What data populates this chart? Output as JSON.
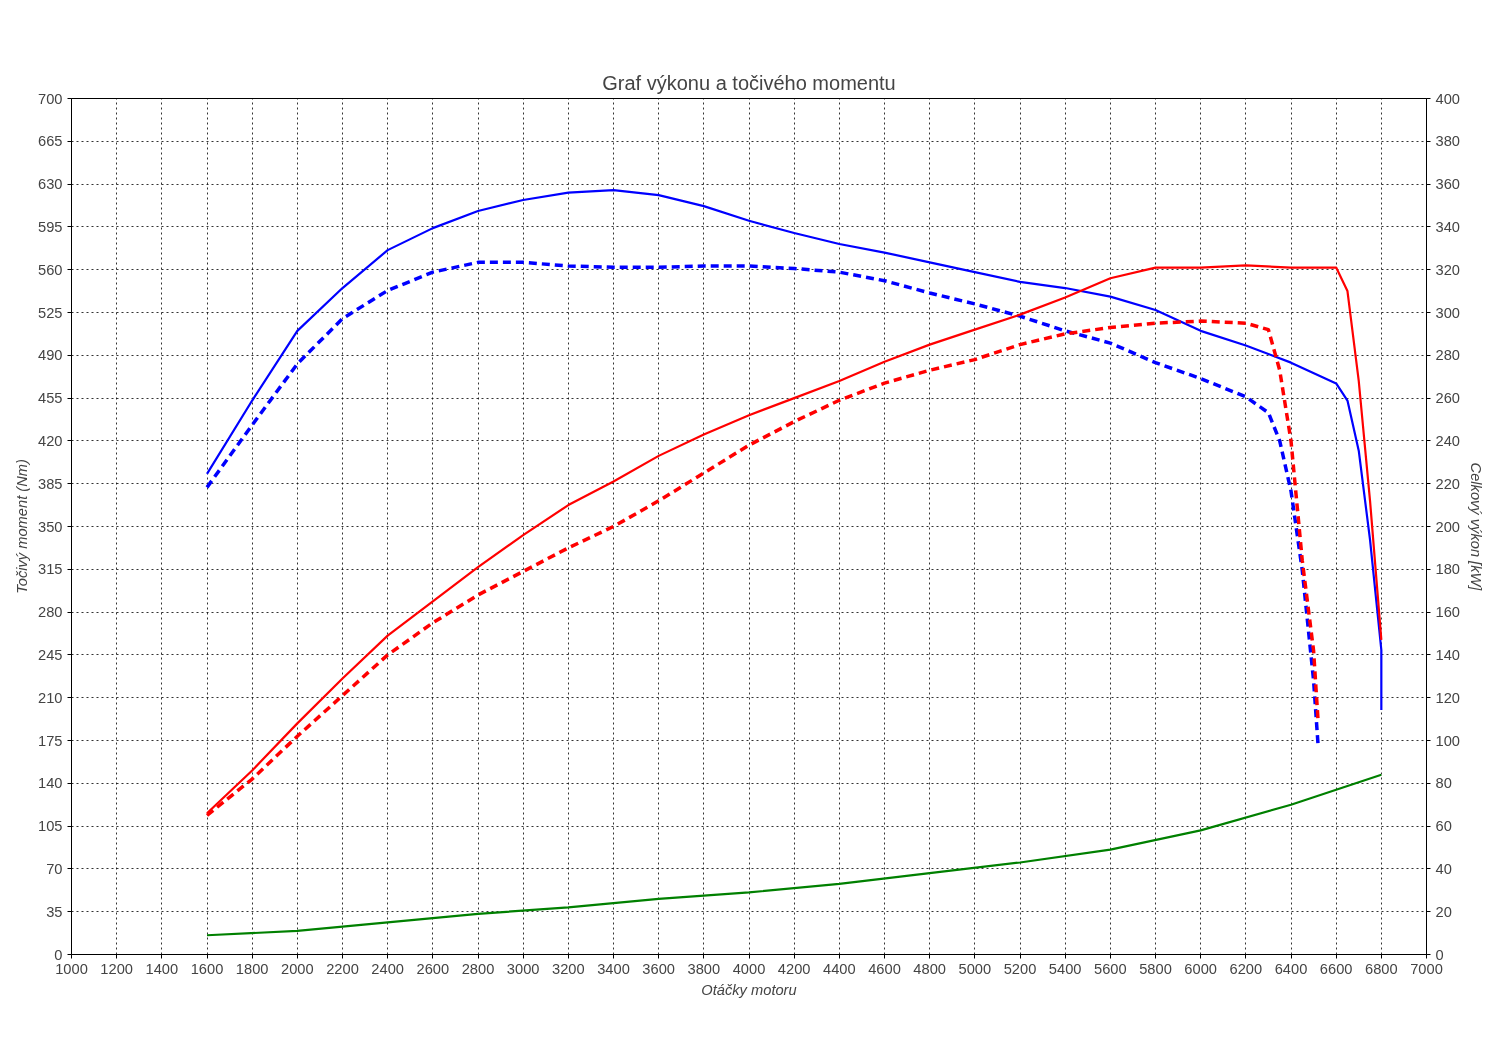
{
  "chart_data": {
    "type": "line",
    "title": "Graf výkonu a točivého momentu",
    "xlabel": "Otáčky motoru",
    "ylabel": "Točivý moment (Nm)",
    "y2label": "Celkový výkon [kW]",
    "xlim": [
      1000,
      7000
    ],
    "xticks": [
      1000,
      1200,
      1400,
      1600,
      1800,
      2000,
      2200,
      2400,
      2600,
      2800,
      3000,
      3200,
      3400,
      3600,
      3800,
      4000,
      4200,
      4400,
      4600,
      4800,
      5000,
      5200,
      5400,
      5600,
      5800,
      6000,
      6200,
      6400,
      6600,
      6800,
      7000
    ],
    "ylim": [
      0,
      700
    ],
    "yticks": [
      0,
      35,
      70,
      105,
      140,
      175,
      210,
      245,
      280,
      315,
      350,
      385,
      420,
      455,
      490,
      525,
      560,
      595,
      630,
      665,
      700
    ],
    "y2lim": [
      0,
      400
    ],
    "y2ticks": [
      0,
      20,
      40,
      60,
      80,
      100,
      120,
      140,
      160,
      180,
      200,
      220,
      240,
      260,
      280,
      300,
      320,
      340,
      360,
      380,
      400
    ],
    "grid": true,
    "series": [
      {
        "color": "#0000ff",
        "axis": "y",
        "line_style": "solid",
        "x": [
          1600,
          1800,
          2000,
          2200,
          2400,
          2600,
          2800,
          3000,
          3200,
          3400,
          3600,
          3800,
          4000,
          4200,
          4400,
          4600,
          4800,
          5000,
          5200,
          5400,
          5600,
          5800,
          6000,
          6200,
          6400,
          6600,
          6650,
          6700,
          6750,
          6800,
          6800
        ],
        "values": [
          393,
          453,
          510,
          545,
          576,
          594,
          608,
          617,
          623,
          625,
          621,
          612,
          600,
          590,
          581,
          574,
          566,
          558,
          550,
          545,
          538,
          527,
          510,
          498,
          484,
          467,
          453,
          412,
          339,
          249,
          200
        ]
      },
      {
        "color": "#0000ff",
        "axis": "y",
        "line_style": "dashed",
        "x": [
          1600,
          1800,
          2000,
          2200,
          2400,
          2600,
          2800,
          3000,
          3200,
          3400,
          3600,
          3800,
          4000,
          4200,
          4400,
          4600,
          4800,
          5000,
          5200,
          5400,
          5600,
          5800,
          6000,
          6200,
          6300,
          6350,
          6400,
          6450,
          6500,
          6520
        ],
        "values": [
          382,
          433,
          483,
          520,
          543,
          558,
          566,
          566,
          563,
          562,
          562,
          563,
          563,
          561,
          558,
          551,
          541,
          532,
          522,
          510,
          500,
          484,
          471,
          456,
          443,
          420,
          379,
          314,
          224,
          171
        ]
      },
      {
        "color": "#ff0000",
        "axis": "y2",
        "line_style": "solid",
        "x": [
          1600,
          1800,
          2000,
          2200,
          2400,
          2600,
          2800,
          3000,
          3200,
          3400,
          3600,
          3800,
          4000,
          4200,
          4400,
          4600,
          4800,
          5000,
          5200,
          5400,
          5600,
          5800,
          6000,
          6200,
          6400,
          6600,
          6650,
          6700,
          6750,
          6800
        ],
        "values": [
          66,
          86,
          108,
          129,
          149,
          165,
          181,
          196,
          210,
          221,
          233,
          243,
          252,
          260,
          268,
          277,
          285,
          292,
          299,
          307,
          316,
          321,
          321,
          322,
          321,
          321,
          310,
          268,
          212,
          147
        ]
      },
      {
        "color": "#ff0000",
        "axis": "y2",
        "line_style": "dashed",
        "x": [
          1600,
          1800,
          2000,
          2200,
          2400,
          2600,
          2800,
          3000,
          3200,
          3400,
          3600,
          3800,
          4000,
          4200,
          4400,
          4600,
          4800,
          5000,
          5200,
          5400,
          5600,
          5800,
          6000,
          6200,
          6300,
          6350,
          6400,
          6450,
          6500,
          6520
        ],
        "values": [
          65,
          82,
          102,
          121,
          140,
          155,
          168,
          179,
          190,
          200,
          212,
          225,
          238,
          249,
          259,
          267,
          273,
          278,
          285,
          290,
          293,
          295,
          296,
          295,
          292,
          273,
          240,
          184,
          142,
          109
        ]
      },
      {
        "color": "#008000",
        "axis": "y2",
        "line_style": "solid",
        "x": [
          1600,
          2000,
          2400,
          2800,
          3200,
          3600,
          4000,
          4400,
          4800,
          5200,
          5600,
          6000,
          6400,
          6800
        ],
        "values": [
          9,
          11,
          15,
          19,
          22,
          26,
          29,
          33,
          38,
          43,
          49,
          58,
          70,
          84
        ]
      }
    ]
  }
}
